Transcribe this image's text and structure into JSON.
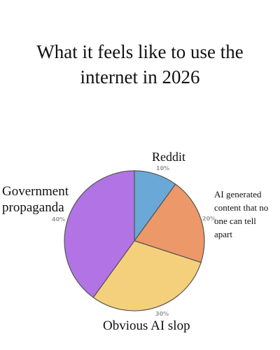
{
  "chart_data": {
    "type": "pie",
    "title": "What it feels like to use the internet in 2026",
    "slices": [
      {
        "label": "Reddit",
        "value": 10,
        "percent_label": "10%",
        "color": "#6aa8d8"
      },
      {
        "label": "AI generated content that no one can tell apart",
        "value": 20,
        "percent_label": "20%",
        "color": "#ec9868"
      },
      {
        "label": "Obvious AI slop",
        "value": 30,
        "percent_label": "30%",
        "color": "#f5d07c"
      },
      {
        "label": "Government propaganda",
        "value": 40,
        "percent_label": "40%",
        "color": "#b274e4"
      }
    ],
    "slice_outline_color": "#555555"
  }
}
